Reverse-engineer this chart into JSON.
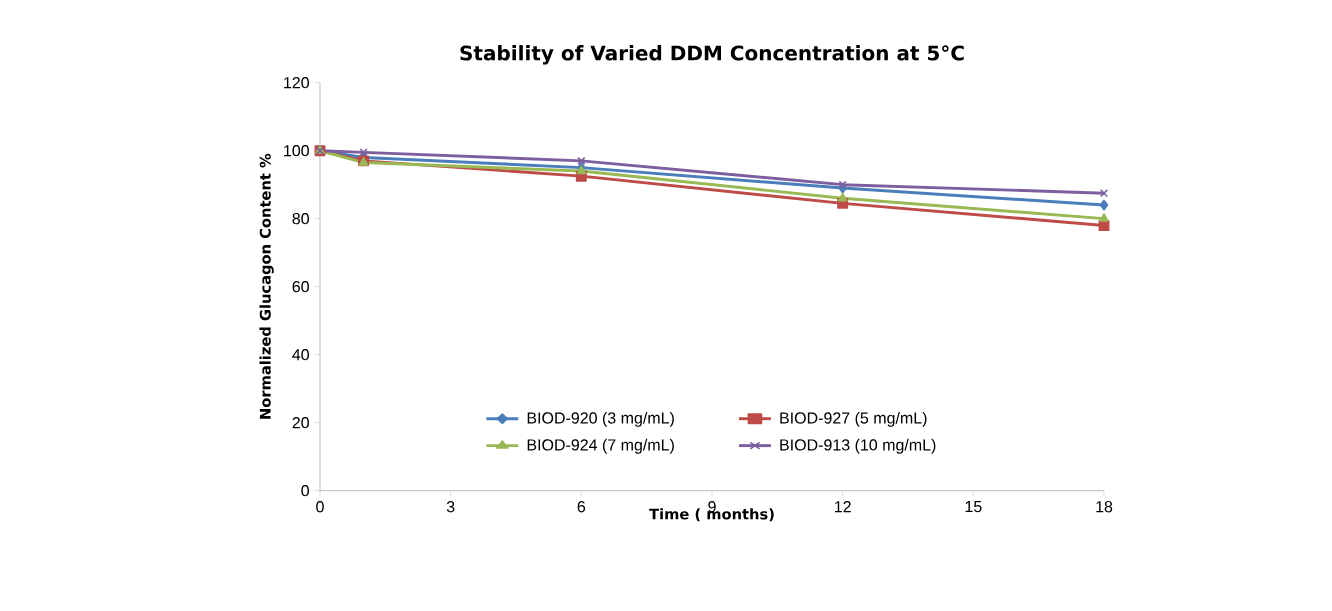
{
  "chart_data": {
    "type": "line",
    "title": "Stability of Varied DDM Concentration at 5°C",
    "xlabel": "Time ( months)",
    "ylabel": "Normalized Glucagon Content %",
    "x": [
      0,
      1,
      6,
      12,
      18
    ],
    "series": [
      {
        "name": "BIOD-920 (3 mg/mL)",
        "color": "#4a7ebb",
        "marker": "diamond",
        "values": [
          100,
          98,
          95,
          89,
          84
        ]
      },
      {
        "name": "BIOD-927 (5 mg/mL)",
        "color": "#be4b48",
        "marker": "square",
        "values": [
          100,
          97,
          92.5,
          84.5,
          78
        ]
      },
      {
        "name": "BIOD-924 (7 mg/mL)",
        "color": "#98b954",
        "marker": "triangle",
        "values": [
          100,
          96.5,
          94,
          86,
          80
        ]
      },
      {
        "name": "BIOD-913 (10 mg/mL)",
        "color": "#7d5fa0",
        "marker": "cross",
        "values": [
          100,
          99.5,
          97,
          90,
          87.5
        ]
      }
    ],
    "xlim": [
      0,
      18
    ],
    "xticks": [
      0,
      3,
      6,
      9,
      12,
      15,
      18
    ],
    "ylim": [
      0,
      120
    ],
    "yticks": [
      0,
      20,
      40,
      60,
      80,
      100,
      120
    ],
    "legend": "bottom",
    "grid": false,
    "line_style": "solid"
  }
}
